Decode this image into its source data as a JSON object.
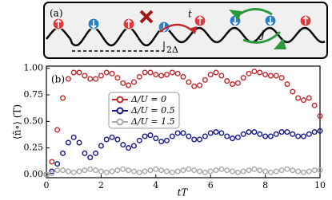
{
  "panel_a": {
    "label": "(a)",
    "hop": "t",
    "exchange": "J",
    "offset": "2Δ"
  },
  "chart_data": {
    "type": "scatter",
    "panel_label": "(b)",
    "x_label": "tT",
    "y_label": "⟨n̂∘⟩ (T)",
    "x": [
      0,
      0.2,
      0.4,
      0.6,
      0.8,
      1,
      1.2,
      1.4,
      1.6,
      1.8,
      2,
      2.2,
      2.4,
      2.6,
      2.8,
      3,
      3.2,
      3.4,
      3.6,
      3.8,
      4,
      4.2,
      4.4,
      4.6,
      4.8,
      5,
      5.2,
      5.4,
      5.6,
      5.8,
      6,
      6.2,
      6.4,
      6.6,
      6.8,
      7,
      7.2,
      7.4,
      7.6,
      7.8,
      8,
      8.2,
      8.4,
      8.6,
      8.8,
      9,
      9.2,
      9.4,
      9.6,
      9.8,
      10
    ],
    "series": [
      {
        "name": "Δ/U = 0",
        "color": "#c0282a",
        "values": [
          0,
          0.12,
          0.42,
          0.72,
          0.9,
          0.96,
          0.96,
          0.93,
          0.9,
          0.9,
          0.93,
          0.96,
          0.95,
          0.91,
          0.86,
          0.84,
          0.87,
          0.92,
          0.96,
          0.96,
          0.94,
          0.93,
          0.94,
          0.96,
          0.95,
          0.92,
          0.87,
          0.83,
          0.84,
          0.89,
          0.94,
          0.96,
          0.93,
          0.88,
          0.85,
          0.86,
          0.91,
          0.95,
          0.97,
          0.96,
          0.94,
          0.93,
          0.93,
          0.91,
          0.85,
          0.78,
          0.72,
          0.7,
          0.72,
          0.65,
          0.55
        ]
      },
      {
        "name": "Δ/U = 0.5",
        "color": "#16168c",
        "values": [
          0,
          0.03,
          0.1,
          0.2,
          0.3,
          0.35,
          0.3,
          0.2,
          0.16,
          0.2,
          0.27,
          0.33,
          0.35,
          0.33,
          0.28,
          0.25,
          0.27,
          0.32,
          0.36,
          0.37,
          0.34,
          0.31,
          0.32,
          0.36,
          0.39,
          0.39,
          0.36,
          0.33,
          0.33,
          0.36,
          0.39,
          0.4,
          0.39,
          0.36,
          0.34,
          0.35,
          0.38,
          0.4,
          0.4,
          0.38,
          0.36,
          0.36,
          0.38,
          0.4,
          0.4,
          0.38,
          0.36,
          0.36,
          0.38,
          0.4,
          0.41
        ]
      },
      {
        "name": "Δ/U = 1.5",
        "color": "#a8a8a8",
        "values": [
          0,
          0.01,
          0.04,
          0.04,
          0.03,
          0.02,
          0.03,
          0.04,
          0.05,
          0.04,
          0.03,
          0.02,
          0.03,
          0.04,
          0.05,
          0.04,
          0.03,
          0.02,
          0.03,
          0.04,
          0.05,
          0.04,
          0.03,
          0.02,
          0.03,
          0.04,
          0.05,
          0.04,
          0.03,
          0.02,
          0.03,
          0.04,
          0.05,
          0.04,
          0.03,
          0.02,
          0.03,
          0.04,
          0.05,
          0.04,
          0.03,
          0.02,
          0.03,
          0.04,
          0.05,
          0.04,
          0.03,
          0.02,
          0.03,
          0.04,
          0.04
        ]
      }
    ],
    "xlim": [
      0,
      10
    ],
    "ylim": [
      -0.03,
      1.02
    ],
    "xticks": [
      0,
      2,
      4,
      6,
      8,
      10
    ],
    "yticks": [
      {
        "value": 0,
        "label": "0.00"
      },
      {
        "value": 0.25,
        "label": "0.25"
      },
      {
        "value": 0.5,
        "label": "0.50"
      },
      {
        "value": 0.75,
        "label": "0.75"
      },
      {
        "value": 1,
        "label": "1.00"
      }
    ]
  }
}
